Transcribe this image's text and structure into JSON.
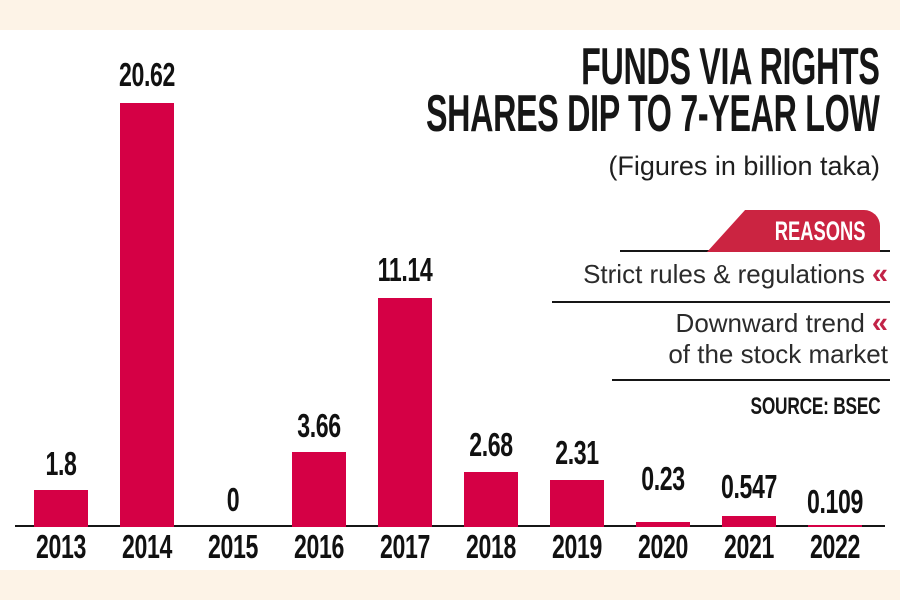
{
  "title": {
    "line1": "FUNDS VIA RIGHTS",
    "line2": "SHARES DIP TO 7-YEAR LOW",
    "subtitle": "(Figures in billion taka)"
  },
  "reasons": {
    "badge_label": "REASONS",
    "marker": "«",
    "items": [
      {
        "lines": [
          "Strict rules & regulations"
        ]
      },
      {
        "lines": [
          "Downward trend",
          "of the stock market"
        ]
      }
    ]
  },
  "source_label": "SOURCE: BSEC",
  "colors": {
    "bar_red": "#d50045",
    "badge_red": "#cb2441",
    "marker_red": "#c22347",
    "cream": "#fdf3e7",
    "ink": "#161616",
    "text_gray": "#2b2b2b"
  },
  "chart_data": {
    "type": "bar",
    "title": "FUNDS VIA RIGHTS SHARES DIP TO 7-YEAR LOW",
    "subtitle": "(Figures in billion taka)",
    "unit": "billion taka",
    "categories": [
      "2013",
      "2014",
      "2015",
      "2016",
      "2017",
      "2018",
      "2019",
      "2020",
      "2021",
      "2022"
    ],
    "values": [
      1.8,
      20.62,
      0,
      3.66,
      11.14,
      2.68,
      2.31,
      0.23,
      0.547,
      0.109
    ],
    "value_labels": [
      "1.8",
      "20.62",
      "0",
      "3.66",
      "11.14",
      "2.68",
      "2.31",
      "0.23",
      "0.547",
      "0.109"
    ],
    "ylim": [
      0,
      22
    ],
    "grid": false,
    "legend": false,
    "source": "BSEC"
  }
}
